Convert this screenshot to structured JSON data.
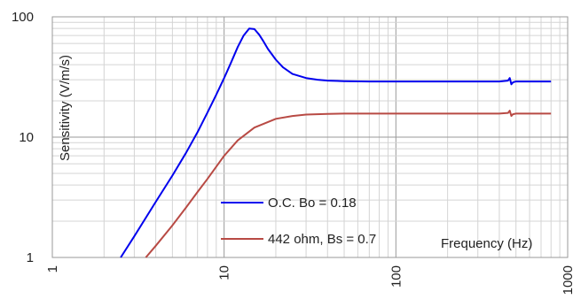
{
  "chart_data": {
    "type": "line",
    "x_scale": "log",
    "y_scale": "log",
    "xlim": [
      1,
      1000
    ],
    "ylim": [
      1,
      100
    ],
    "xlabel": "Frequency (Hz)",
    "ylabel": "Sensitivity (V/m/s)",
    "x_ticks": [
      "1",
      "10",
      "100",
      "1000"
    ],
    "y_ticks": [
      "1",
      "10",
      "100"
    ],
    "grid": true,
    "legend_position": "lower-center",
    "series": [
      {
        "name": "O.C. Bo = 0.18",
        "color": "#0000ee",
        "x": [
          2.5,
          3,
          4,
          5,
          6,
          7,
          8,
          9,
          10,
          11,
          12,
          13,
          14,
          15,
          16,
          17,
          18,
          20,
          22,
          25,
          30,
          35,
          40,
          50,
          70,
          100,
          150,
          200,
          300,
          400,
          450,
          460,
          470,
          480,
          500,
          600,
          800
        ],
        "y": [
          1.0,
          1.5,
          2.9,
          4.8,
          7.4,
          11.0,
          16.0,
          22.5,
          31,
          42,
          56,
          70,
          80,
          79,
          71,
          62,
          54,
          44,
          38,
          33.5,
          31,
          30,
          29.5,
          29.2,
          29.0,
          29.0,
          29.0,
          29.0,
          29.0,
          29.0,
          29.5,
          31.0,
          27.5,
          28.5,
          29.0,
          29.0,
          29.0
        ]
      },
      {
        "name": "442 ohm, Bs = 0.7",
        "color": "#b84a44",
        "x": [
          3.5,
          4,
          5,
          6,
          7,
          8,
          10,
          12,
          15,
          20,
          25,
          30,
          40,
          50,
          70,
          100,
          150,
          200,
          300,
          400,
          450,
          460,
          470,
          480,
          500,
          600,
          800
        ],
        "y": [
          1.0,
          1.25,
          1.85,
          2.6,
          3.5,
          4.5,
          7.0,
          9.4,
          12.0,
          14.2,
          15.0,
          15.4,
          15.6,
          15.7,
          15.7,
          15.7,
          15.7,
          15.7,
          15.7,
          15.7,
          15.9,
          16.6,
          15.0,
          15.5,
          15.7,
          15.7,
          15.7
        ]
      }
    ]
  }
}
